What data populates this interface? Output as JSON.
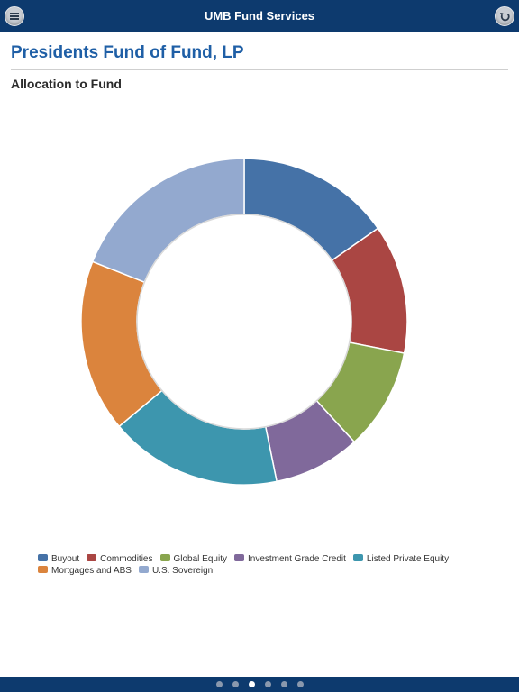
{
  "app": {
    "title": "UMB Fund Services"
  },
  "page": {
    "fund_title": "Presidents Fund of Fund, LP",
    "section_title": "Allocation to Fund"
  },
  "icons": {
    "menu": "menu-icon",
    "back": "back-arrow-icon"
  },
  "pagination": {
    "count": 6,
    "active_index": 2
  },
  "chart_data": {
    "type": "pie",
    "donut": true,
    "title": "",
    "legend_position": "bottom",
    "slices": [
      {
        "label": "Buyout",
        "value": 15.3,
        "color": "#4572a7"
      },
      {
        "label": "Commodities",
        "value": 12.8,
        "color": "#aa4643"
      },
      {
        "label": "Global Equity",
        "value": 10.1,
        "color": "#89a54e"
      },
      {
        "label": "Investment Grade Credit",
        "value": 8.6,
        "color": "#80699b"
      },
      {
        "label": "Listed Private Equity",
        "value": 17.1,
        "color": "#3d96ae"
      },
      {
        "label": "Mortgages and ABS",
        "value": 17.1,
        "color": "#db843d"
      },
      {
        "label": "U.S. Sovereign",
        "value": 19.0,
        "color": "#93a9cf"
      }
    ]
  }
}
